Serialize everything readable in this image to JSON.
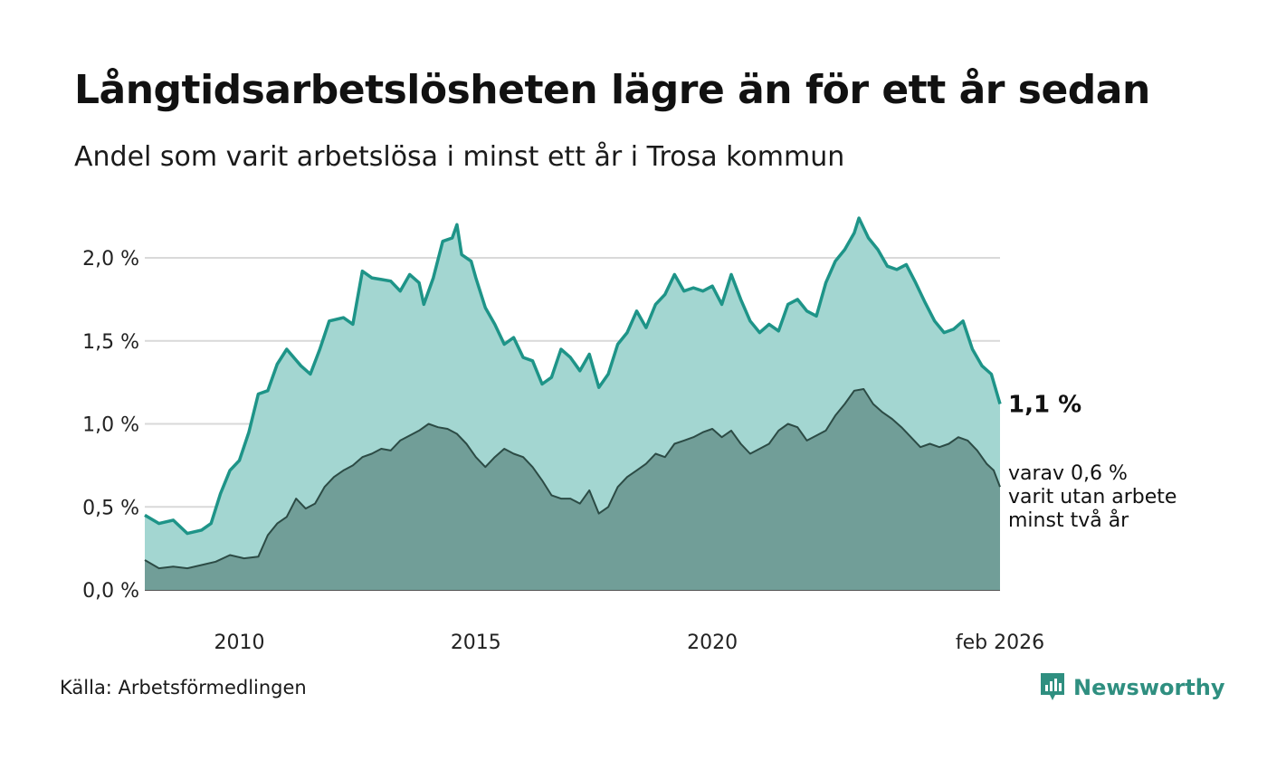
{
  "title": "Långtidsarbetslösheten lägre än för ett år sedan",
  "subtitle": "Andel som varit arbetslösa i minst ett år i Trosa kommun",
  "source": "Källa: Arbetsförmedlingen",
  "brand": "Newsworthy",
  "colors": {
    "total_line": "#1e9488",
    "total_fill": "#a3d6d1",
    "two_year_line": "#2c4b45",
    "two_year_fill": "#719e98",
    "grid": "#d9d9d9",
    "brand": "#2f8f80"
  },
  "chart_data": {
    "type": "area",
    "title": "Långtidsarbetslösheten lägre än för ett år sedan",
    "subtitle": "Andel som varit arbetslösa i minst ett år i Trosa kommun",
    "xlabel": "",
    "ylabel": "",
    "x_range": [
      2008.0,
      2026.083
    ],
    "ylim": [
      0,
      2.3
    ],
    "y_ticks": [
      0,
      0.5,
      1.0,
      1.5,
      2.0
    ],
    "y_tick_labels": [
      "0,0 %",
      "0,5 %",
      "1,0 %",
      "1,5 %",
      "2,0 %"
    ],
    "x_ticks": [
      2010,
      2015,
      2020,
      2026.083
    ],
    "x_tick_labels": [
      "2010",
      "2015",
      "2020",
      "feb 2026"
    ],
    "grid": true,
    "series": [
      {
        "name": "Minst ett år",
        "end_label": "1,1 %",
        "points": [
          [
            2008.0,
            0.45
          ],
          [
            2008.3,
            0.4
          ],
          [
            2008.6,
            0.42
          ],
          [
            2008.9,
            0.34
          ],
          [
            2009.2,
            0.36
          ],
          [
            2009.4,
            0.4
          ],
          [
            2009.6,
            0.58
          ],
          [
            2009.8,
            0.72
          ],
          [
            2010.0,
            0.78
          ],
          [
            2010.2,
            0.95
          ],
          [
            2010.4,
            1.18
          ],
          [
            2010.6,
            1.2
          ],
          [
            2010.8,
            1.36
          ],
          [
            2011.0,
            1.45
          ],
          [
            2011.3,
            1.35
          ],
          [
            2011.5,
            1.3
          ],
          [
            2011.7,
            1.45
          ],
          [
            2011.9,
            1.62
          ],
          [
            2012.2,
            1.64
          ],
          [
            2012.4,
            1.6
          ],
          [
            2012.6,
            1.92
          ],
          [
            2012.8,
            1.88
          ],
          [
            2013.0,
            1.87
          ],
          [
            2013.2,
            1.86
          ],
          [
            2013.4,
            1.8
          ],
          [
            2013.6,
            1.9
          ],
          [
            2013.8,
            1.85
          ],
          [
            2013.9,
            1.72
          ],
          [
            2014.1,
            1.88
          ],
          [
            2014.3,
            2.1
          ],
          [
            2014.5,
            2.12
          ],
          [
            2014.6,
            2.2
          ],
          [
            2014.7,
            2.02
          ],
          [
            2014.9,
            1.98
          ],
          [
            2015.0,
            1.88
          ],
          [
            2015.2,
            1.7
          ],
          [
            2015.4,
            1.6
          ],
          [
            2015.6,
            1.48
          ],
          [
            2015.8,
            1.52
          ],
          [
            2016.0,
            1.4
          ],
          [
            2016.2,
            1.38
          ],
          [
            2016.4,
            1.24
          ],
          [
            2016.6,
            1.28
          ],
          [
            2016.8,
            1.45
          ],
          [
            2017.0,
            1.4
          ],
          [
            2017.2,
            1.32
          ],
          [
            2017.4,
            1.42
          ],
          [
            2017.6,
            1.22
          ],
          [
            2017.8,
            1.3
          ],
          [
            2018.0,
            1.48
          ],
          [
            2018.2,
            1.55
          ],
          [
            2018.4,
            1.68
          ],
          [
            2018.6,
            1.58
          ],
          [
            2018.8,
            1.72
          ],
          [
            2019.0,
            1.78
          ],
          [
            2019.2,
            1.9
          ],
          [
            2019.4,
            1.8
          ],
          [
            2019.6,
            1.82
          ],
          [
            2019.8,
            1.8
          ],
          [
            2020.0,
            1.83
          ],
          [
            2020.2,
            1.72
          ],
          [
            2020.4,
            1.9
          ],
          [
            2020.6,
            1.75
          ],
          [
            2020.8,
            1.62
          ],
          [
            2021.0,
            1.55
          ],
          [
            2021.2,
            1.6
          ],
          [
            2021.4,
            1.56
          ],
          [
            2021.6,
            1.72
          ],
          [
            2021.8,
            1.75
          ],
          [
            2022.0,
            1.68
          ],
          [
            2022.2,
            1.65
          ],
          [
            2022.4,
            1.85
          ],
          [
            2022.6,
            1.98
          ],
          [
            2022.8,
            2.05
          ],
          [
            2023.0,
            2.15
          ],
          [
            2023.1,
            2.24
          ],
          [
            2023.3,
            2.12
          ],
          [
            2023.5,
            2.05
          ],
          [
            2023.7,
            1.95
          ],
          [
            2023.9,
            1.93
          ],
          [
            2024.1,
            1.96
          ],
          [
            2024.3,
            1.85
          ],
          [
            2024.5,
            1.73
          ],
          [
            2024.7,
            1.62
          ],
          [
            2024.9,
            1.55
          ],
          [
            2025.1,
            1.57
          ],
          [
            2025.3,
            1.62
          ],
          [
            2025.5,
            1.45
          ],
          [
            2025.7,
            1.35
          ],
          [
            2025.9,
            1.3
          ],
          [
            2026.083,
            1.12
          ]
        ]
      },
      {
        "name": "Minst två år",
        "end_label": "varav 0,6 % varit utan arbete minst två år",
        "end_label_lines": [
          "varav 0,6 %",
          "varit utan arbete",
          "minst två år"
        ],
        "points": [
          [
            2008.0,
            0.18
          ],
          [
            2008.3,
            0.13
          ],
          [
            2008.6,
            0.14
          ],
          [
            2008.9,
            0.13
          ],
          [
            2009.2,
            0.15
          ],
          [
            2009.5,
            0.17
          ],
          [
            2009.8,
            0.21
          ],
          [
            2010.1,
            0.19
          ],
          [
            2010.4,
            0.2
          ],
          [
            2010.6,
            0.33
          ],
          [
            2010.8,
            0.4
          ],
          [
            2011.0,
            0.44
          ],
          [
            2011.2,
            0.55
          ],
          [
            2011.4,
            0.49
          ],
          [
            2011.6,
            0.52
          ],
          [
            2011.8,
            0.62
          ],
          [
            2012.0,
            0.68
          ],
          [
            2012.2,
            0.72
          ],
          [
            2012.4,
            0.75
          ],
          [
            2012.6,
            0.8
          ],
          [
            2012.8,
            0.82
          ],
          [
            2013.0,
            0.85
          ],
          [
            2013.2,
            0.84
          ],
          [
            2013.4,
            0.9
          ],
          [
            2013.6,
            0.93
          ],
          [
            2013.8,
            0.96
          ],
          [
            2014.0,
            1.0
          ],
          [
            2014.2,
            0.98
          ],
          [
            2014.4,
            0.97
          ],
          [
            2014.6,
            0.94
          ],
          [
            2014.8,
            0.88
          ],
          [
            2015.0,
            0.8
          ],
          [
            2015.2,
            0.74
          ],
          [
            2015.4,
            0.8
          ],
          [
            2015.6,
            0.85
          ],
          [
            2015.8,
            0.82
          ],
          [
            2016.0,
            0.8
          ],
          [
            2016.2,
            0.74
          ],
          [
            2016.4,
            0.66
          ],
          [
            2016.6,
            0.57
          ],
          [
            2016.8,
            0.55
          ],
          [
            2017.0,
            0.55
          ],
          [
            2017.2,
            0.52
          ],
          [
            2017.4,
            0.6
          ],
          [
            2017.6,
            0.46
          ],
          [
            2017.8,
            0.5
          ],
          [
            2018.0,
            0.62
          ],
          [
            2018.2,
            0.68
          ],
          [
            2018.4,
            0.72
          ],
          [
            2018.6,
            0.76
          ],
          [
            2018.8,
            0.82
          ],
          [
            2019.0,
            0.8
          ],
          [
            2019.2,
            0.88
          ],
          [
            2019.4,
            0.9
          ],
          [
            2019.6,
            0.92
          ],
          [
            2019.8,
            0.95
          ],
          [
            2020.0,
            0.97
          ],
          [
            2020.2,
            0.92
          ],
          [
            2020.4,
            0.96
          ],
          [
            2020.6,
            0.88
          ],
          [
            2020.8,
            0.82
          ],
          [
            2021.0,
            0.85
          ],
          [
            2021.2,
            0.88
          ],
          [
            2021.4,
            0.96
          ],
          [
            2021.6,
            1.0
          ],
          [
            2021.8,
            0.98
          ],
          [
            2022.0,
            0.9
          ],
          [
            2022.2,
            0.93
          ],
          [
            2022.4,
            0.96
          ],
          [
            2022.6,
            1.05
          ],
          [
            2022.8,
            1.12
          ],
          [
            2023.0,
            1.2
          ],
          [
            2023.2,
            1.21
          ],
          [
            2023.4,
            1.12
          ],
          [
            2023.6,
            1.07
          ],
          [
            2023.8,
            1.03
          ],
          [
            2024.0,
            0.98
          ],
          [
            2024.2,
            0.92
          ],
          [
            2024.4,
            0.86
          ],
          [
            2024.6,
            0.88
          ],
          [
            2024.8,
            0.86
          ],
          [
            2025.0,
            0.88
          ],
          [
            2025.2,
            0.92
          ],
          [
            2025.4,
            0.9
          ],
          [
            2025.6,
            0.84
          ],
          [
            2025.8,
            0.76
          ],
          [
            2025.95,
            0.72
          ],
          [
            2026.083,
            0.62
          ]
        ]
      }
    ]
  }
}
